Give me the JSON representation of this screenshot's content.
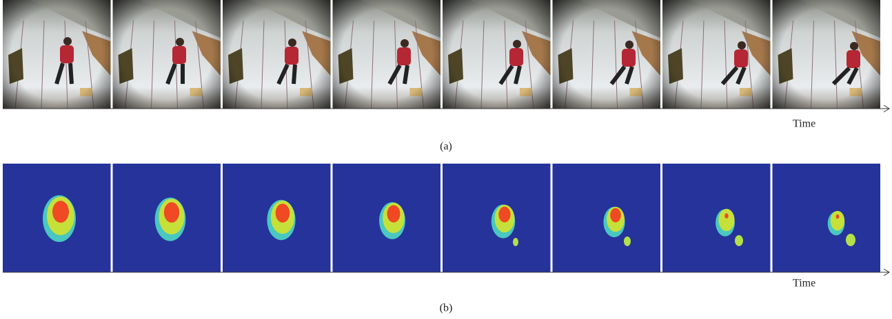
{
  "panels": [
    {
      "axis_label": "Time",
      "caption": "(a)"
    },
    {
      "axis_label": "Time",
      "caption": "(b)"
    }
  ]
}
